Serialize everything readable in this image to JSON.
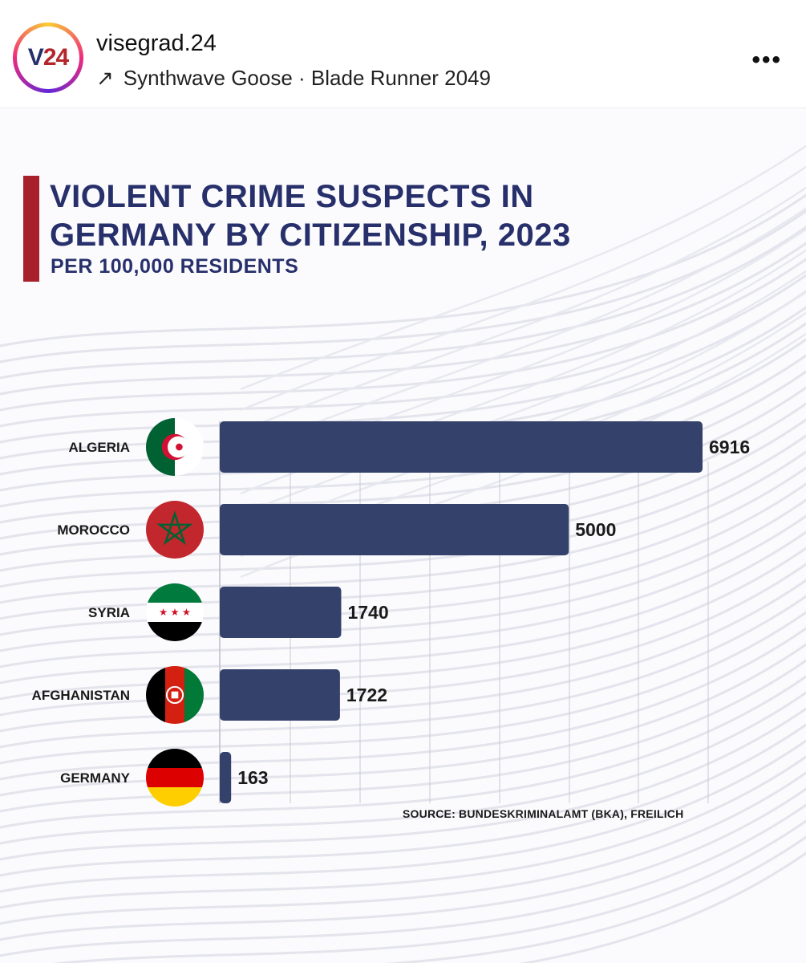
{
  "header": {
    "username": "visegrad.24",
    "avatar_v": "V",
    "avatar_24": "24",
    "music": "Synthwave Goose · Blade Runner 2049",
    "arrow": "↗",
    "more": "•••"
  },
  "colors": {
    "title": "#27306b",
    "accent": "#a8202a",
    "bar": "#33416b",
    "grid": "#c9c9d3"
  },
  "chart_data": {
    "type": "bar",
    "orientation": "horizontal",
    "title": "VIOLENT CRIME SUSPECTS IN GERMANY BY CITIZENSHIP, 2023",
    "title_line1": "VIOLENT CRIME SUSPECTS IN",
    "title_line2": "GERMANY BY CITIZENSHIP, 2023",
    "subtitle": "PER 100,000 RESIDENTS",
    "categories": [
      "ALGERIA",
      "MOROCCO",
      "SYRIA",
      "AFGHANISTAN",
      "GERMANY"
    ],
    "values": [
      6916,
      5000,
      1740,
      1722,
      163
    ],
    "flags": [
      "algeria-flag-icon",
      "morocco-flag-icon",
      "syria-flag-icon",
      "afghanistan-flag-icon",
      "germany-flag-icon"
    ],
    "xlim": [
      0,
      7000
    ],
    "grid": true,
    "source": "SOURCE:  BUNDESKRIMINALAMT (BKA), FREILICH"
  }
}
